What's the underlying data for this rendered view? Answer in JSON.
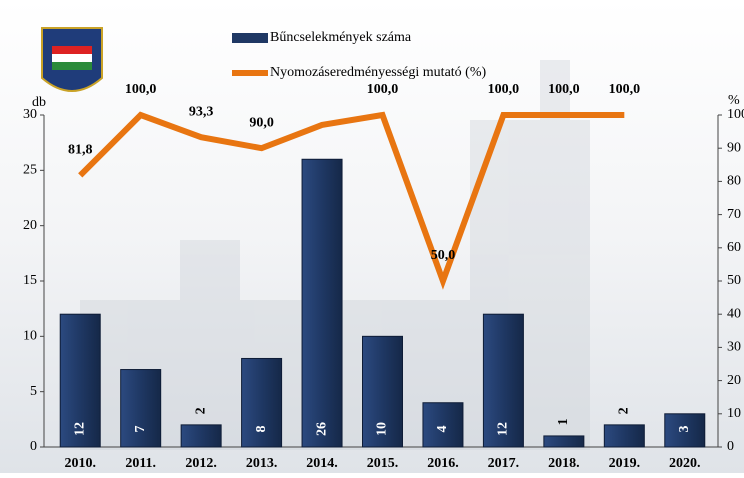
{
  "chart_data": {
    "type": "bar-line",
    "categories": [
      "2010.",
      "2011.",
      "2012.",
      "2013.",
      "2014.",
      "2015.",
      "2016.",
      "2017.",
      "2018.",
      "2019.",
      "2020."
    ],
    "series": [
      {
        "name": "Bűncselekmények száma",
        "type": "bar",
        "color": "#1f3864",
        "values": [
          12,
          7,
          2,
          8,
          26,
          10,
          4,
          12,
          1,
          2,
          3
        ]
      },
      {
        "name": "Nyomozáseredményességi mutató (%)",
        "type": "line",
        "axis": "y2",
        "color": "#e87511",
        "values": [
          81.8,
          100,
          93.3,
          90,
          97,
          100,
          50,
          100,
          100,
          100,
          null
        ],
        "value_labels": [
          "81,8",
          "100,0",
          "93,3",
          "90,0",
          null,
          "100,0",
          "50,0",
          "100,0",
          "100,0",
          "100,0",
          null
        ]
      }
    ],
    "ylabel": "db",
    "y2label": "%",
    "ylim": [
      0,
      30
    ],
    "yticks": [
      0,
      5,
      10,
      15,
      20,
      25,
      30
    ],
    "y2lim": [
      0,
      100
    ],
    "y2ticks": [
      0,
      10,
      20,
      30,
      40,
      50,
      60,
      70,
      80,
      90,
      100
    ]
  }
}
